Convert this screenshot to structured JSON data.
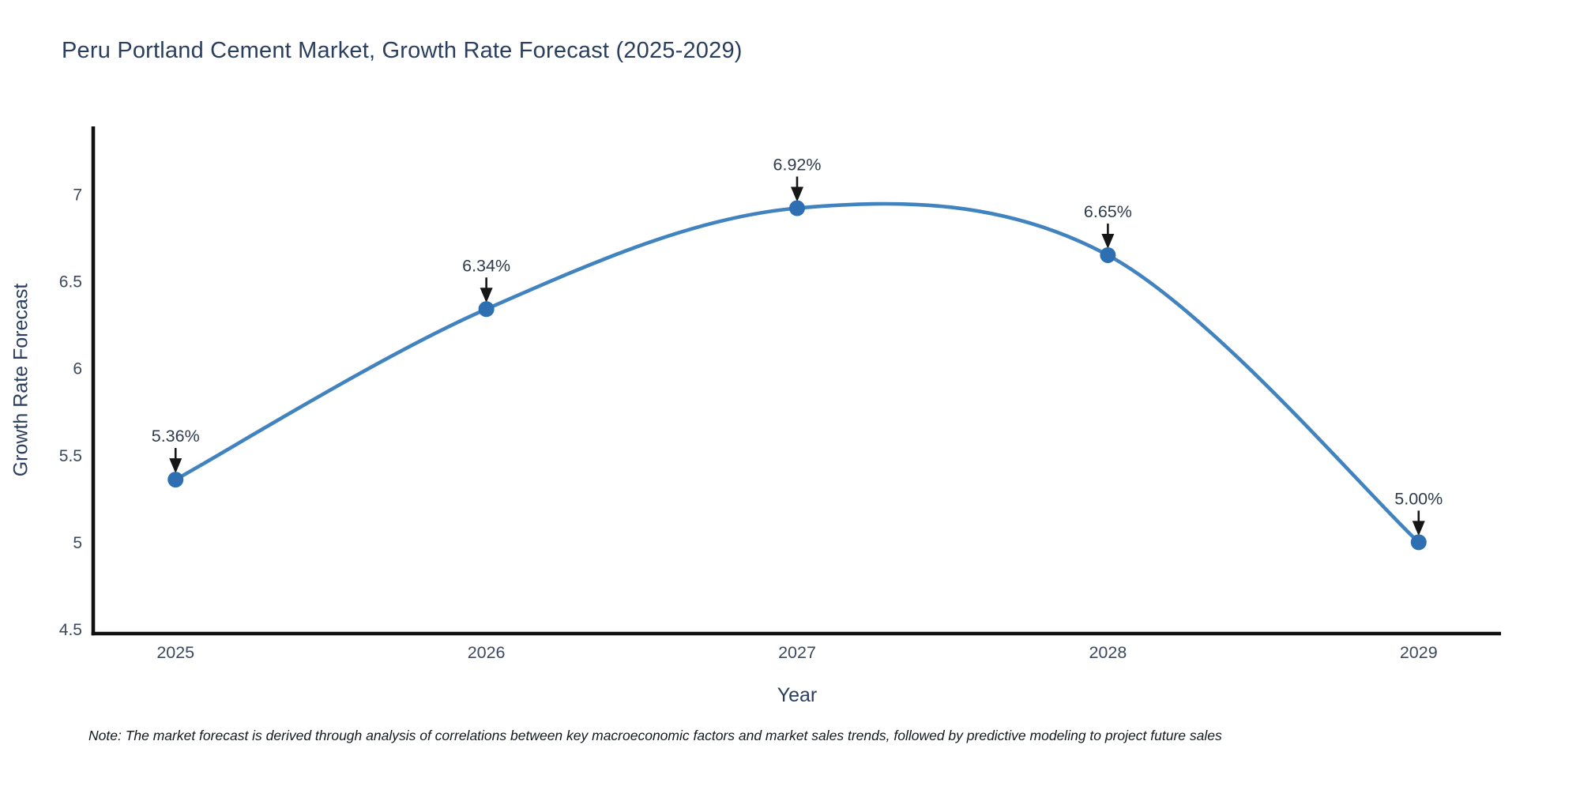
{
  "figure": {
    "note": "Note: The market forecast is derived through analysis of correlations between key macroeconomic factors and market sales trends, followed by predictive modeling to project future sales"
  },
  "chart_data": {
    "type": "line",
    "title": "Peru Portland Cement Market, Growth Rate Forecast (2025-2029)",
    "xlabel": "Year",
    "ylabel": "Growth Rate Forecast",
    "x": [
      2025,
      2026,
      2027,
      2028,
      2029
    ],
    "values": [
      5.36,
      6.34,
      6.92,
      6.65,
      5.0
    ],
    "point_labels": [
      "5.36%",
      "6.34%",
      "6.92%",
      "6.65%",
      "5.00%"
    ],
    "xtick_labels": [
      "2025",
      "2026",
      "2027",
      "2028",
      "2029"
    ],
    "yticks": [
      4.5,
      5,
      5.5,
      6,
      6.5,
      7
    ],
    "ytick_labels": [
      "4.5",
      "5",
      "5.5",
      "6",
      "6.5",
      "7"
    ],
    "xlim": [
      2024.735,
      2029.265
    ],
    "ylim": [
      4.475,
      7.39
    ],
    "line_shape": "spline",
    "grid": false,
    "legend": false,
    "annotations_have_arrows": true,
    "colors": {
      "line": "#4183bf",
      "marker": "#2e6fb2",
      "axis": "#101010",
      "tick_text": "#3c485e",
      "annotation_text": "#2f3b4c",
      "arrow": "#161616",
      "title_text": "#2a3f5f",
      "background": "#ffffff"
    }
  }
}
